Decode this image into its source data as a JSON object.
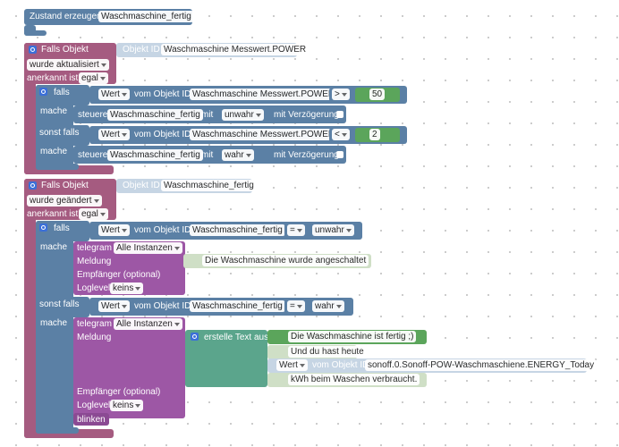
{
  "state": {
    "label": "Zustand erzeugen",
    "name": "Waschmaschine_fertig"
  },
  "trigger1": {
    "label": "Falls Objekt",
    "id_label": "Objekt ID",
    "object": "Waschmaschine Messwert.POWER",
    "event": "wurde aktualisiert",
    "ack_label": "anerkannt ist",
    "ack": "egal"
  },
  "if1": {
    "if": "falls",
    "do": "mache",
    "elseif": "sonst falls",
    "conditions": [
      {
        "value": "Wert",
        "of": "vom Objekt ID",
        "object": "Waschmaschine Messwert.POWER",
        "op": ">",
        "operand": 50
      },
      {
        "value": "Wert",
        "of": "vom Objekt ID",
        "object": "Waschmaschine Messwert.POWER",
        "op": "<",
        "operand": 2
      }
    ],
    "actions": [
      {
        "label": "steuere",
        "target": "Waschmaschine_fertig",
        "with": "mit",
        "state": "unwahr",
        "delay": "mit Verzögerung"
      },
      {
        "label": "steuere",
        "target": "Waschmaschine_fertig",
        "with": "mit",
        "state": "wahr",
        "delay": "mit Verzögerung"
      }
    ]
  },
  "trigger2": {
    "label": "Falls Objekt",
    "id_label": "Objekt ID",
    "object": "Waschmaschine_fertig",
    "event": "wurde geändert",
    "ack_label": "anerkannt ist",
    "ack": "egal"
  },
  "if2": {
    "if": "falls",
    "do": "mache",
    "elseif": "sonst falls",
    "conditions": [
      {
        "value": "Wert",
        "of": "vom Objekt ID",
        "object": "Waschmaschine_fertig",
        "op": "=",
        "operand": "unwahr"
      },
      {
        "value": "Wert",
        "of": "vom Objekt ID",
        "object": "Waschmaschine_fertig",
        "op": "=",
        "operand": "wahr"
      }
    ],
    "actions": [
      {
        "label": "telegram",
        "instance": "Alle Instanzen",
        "message_label": "Meldung",
        "message": "Die Waschmaschine wurde angeschaltet",
        "recipient_label": "Empfänger (optional)",
        "loglevel_label": "Loglevel",
        "loglevel": "keins"
      },
      {
        "label": "telegram",
        "instance": "Alle Instanzen",
        "message_label": "Meldung",
        "message": {
          "label": "erstelle Text aus",
          "items": [
            "Die Waschmaschine ist fertig ;)",
            "Und du hast heute",
            {
              "value": "Wert",
              "of": "vom Objekt ID",
              "object": "sonoff.0.Sonoff-POW-Waschmaschiene.ENERGY_Today"
            },
            "kWh beim Waschen verbraucht."
          ]
        },
        "recipient_label": "Empfänger (optional)",
        "loglevel_label": "Loglevel",
        "loglevel": "keins",
        "extra": "blinken"
      }
    ]
  }
}
